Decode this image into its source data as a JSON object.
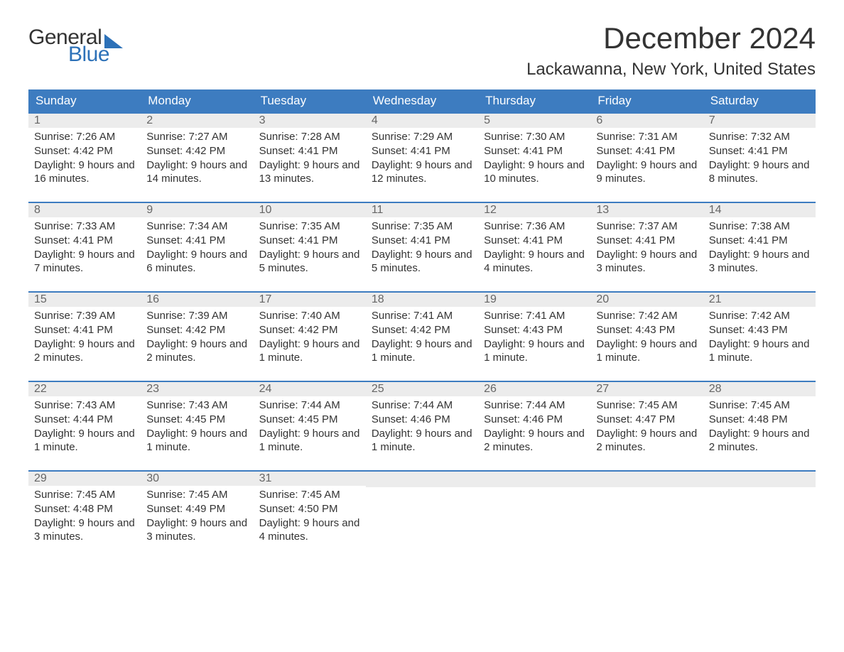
{
  "logo": {
    "text_general": "General",
    "text_blue": "Blue",
    "brand_color": "#2d71b8"
  },
  "title": "December 2024",
  "location": "Lackawanna, New York, United States",
  "colors": {
    "header_bg": "#3d7cc0",
    "header_text": "#ffffff",
    "daynum_bg": "#ececec",
    "daynum_text": "#666666",
    "body_text": "#333333",
    "page_bg": "#ffffff",
    "week_border": "#3d7cc0"
  },
  "weekdays": [
    "Sunday",
    "Monday",
    "Tuesday",
    "Wednesday",
    "Thursday",
    "Friday",
    "Saturday"
  ],
  "weeks": [
    [
      {
        "n": "1",
        "sunrise": "Sunrise: 7:26 AM",
        "sunset": "Sunset: 4:42 PM",
        "daylight": "Daylight: 9 hours and 16 minutes."
      },
      {
        "n": "2",
        "sunrise": "Sunrise: 7:27 AM",
        "sunset": "Sunset: 4:42 PM",
        "daylight": "Daylight: 9 hours and 14 minutes."
      },
      {
        "n": "3",
        "sunrise": "Sunrise: 7:28 AM",
        "sunset": "Sunset: 4:41 PM",
        "daylight": "Daylight: 9 hours and 13 minutes."
      },
      {
        "n": "4",
        "sunrise": "Sunrise: 7:29 AM",
        "sunset": "Sunset: 4:41 PM",
        "daylight": "Daylight: 9 hours and 12 minutes."
      },
      {
        "n": "5",
        "sunrise": "Sunrise: 7:30 AM",
        "sunset": "Sunset: 4:41 PM",
        "daylight": "Daylight: 9 hours and 10 minutes."
      },
      {
        "n": "6",
        "sunrise": "Sunrise: 7:31 AM",
        "sunset": "Sunset: 4:41 PM",
        "daylight": "Daylight: 9 hours and 9 minutes."
      },
      {
        "n": "7",
        "sunrise": "Sunrise: 7:32 AM",
        "sunset": "Sunset: 4:41 PM",
        "daylight": "Daylight: 9 hours and 8 minutes."
      }
    ],
    [
      {
        "n": "8",
        "sunrise": "Sunrise: 7:33 AM",
        "sunset": "Sunset: 4:41 PM",
        "daylight": "Daylight: 9 hours and 7 minutes."
      },
      {
        "n": "9",
        "sunrise": "Sunrise: 7:34 AM",
        "sunset": "Sunset: 4:41 PM",
        "daylight": "Daylight: 9 hours and 6 minutes."
      },
      {
        "n": "10",
        "sunrise": "Sunrise: 7:35 AM",
        "sunset": "Sunset: 4:41 PM",
        "daylight": "Daylight: 9 hours and 5 minutes."
      },
      {
        "n": "11",
        "sunrise": "Sunrise: 7:35 AM",
        "sunset": "Sunset: 4:41 PM",
        "daylight": "Daylight: 9 hours and 5 minutes."
      },
      {
        "n": "12",
        "sunrise": "Sunrise: 7:36 AM",
        "sunset": "Sunset: 4:41 PM",
        "daylight": "Daylight: 9 hours and 4 minutes."
      },
      {
        "n": "13",
        "sunrise": "Sunrise: 7:37 AM",
        "sunset": "Sunset: 4:41 PM",
        "daylight": "Daylight: 9 hours and 3 minutes."
      },
      {
        "n": "14",
        "sunrise": "Sunrise: 7:38 AM",
        "sunset": "Sunset: 4:41 PM",
        "daylight": "Daylight: 9 hours and 3 minutes."
      }
    ],
    [
      {
        "n": "15",
        "sunrise": "Sunrise: 7:39 AM",
        "sunset": "Sunset: 4:41 PM",
        "daylight": "Daylight: 9 hours and 2 minutes."
      },
      {
        "n": "16",
        "sunrise": "Sunrise: 7:39 AM",
        "sunset": "Sunset: 4:42 PM",
        "daylight": "Daylight: 9 hours and 2 minutes."
      },
      {
        "n": "17",
        "sunrise": "Sunrise: 7:40 AM",
        "sunset": "Sunset: 4:42 PM",
        "daylight": "Daylight: 9 hours and 1 minute."
      },
      {
        "n": "18",
        "sunrise": "Sunrise: 7:41 AM",
        "sunset": "Sunset: 4:42 PM",
        "daylight": "Daylight: 9 hours and 1 minute."
      },
      {
        "n": "19",
        "sunrise": "Sunrise: 7:41 AM",
        "sunset": "Sunset: 4:43 PM",
        "daylight": "Daylight: 9 hours and 1 minute."
      },
      {
        "n": "20",
        "sunrise": "Sunrise: 7:42 AM",
        "sunset": "Sunset: 4:43 PM",
        "daylight": "Daylight: 9 hours and 1 minute."
      },
      {
        "n": "21",
        "sunrise": "Sunrise: 7:42 AM",
        "sunset": "Sunset: 4:43 PM",
        "daylight": "Daylight: 9 hours and 1 minute."
      }
    ],
    [
      {
        "n": "22",
        "sunrise": "Sunrise: 7:43 AM",
        "sunset": "Sunset: 4:44 PM",
        "daylight": "Daylight: 9 hours and 1 minute."
      },
      {
        "n": "23",
        "sunrise": "Sunrise: 7:43 AM",
        "sunset": "Sunset: 4:45 PM",
        "daylight": "Daylight: 9 hours and 1 minute."
      },
      {
        "n": "24",
        "sunrise": "Sunrise: 7:44 AM",
        "sunset": "Sunset: 4:45 PM",
        "daylight": "Daylight: 9 hours and 1 minute."
      },
      {
        "n": "25",
        "sunrise": "Sunrise: 7:44 AM",
        "sunset": "Sunset: 4:46 PM",
        "daylight": "Daylight: 9 hours and 1 minute."
      },
      {
        "n": "26",
        "sunrise": "Sunrise: 7:44 AM",
        "sunset": "Sunset: 4:46 PM",
        "daylight": "Daylight: 9 hours and 2 minutes."
      },
      {
        "n": "27",
        "sunrise": "Sunrise: 7:45 AM",
        "sunset": "Sunset: 4:47 PM",
        "daylight": "Daylight: 9 hours and 2 minutes."
      },
      {
        "n": "28",
        "sunrise": "Sunrise: 7:45 AM",
        "sunset": "Sunset: 4:48 PM",
        "daylight": "Daylight: 9 hours and 2 minutes."
      }
    ],
    [
      {
        "n": "29",
        "sunrise": "Sunrise: 7:45 AM",
        "sunset": "Sunset: 4:48 PM",
        "daylight": "Daylight: 9 hours and 3 minutes."
      },
      {
        "n": "30",
        "sunrise": "Sunrise: 7:45 AM",
        "sunset": "Sunset: 4:49 PM",
        "daylight": "Daylight: 9 hours and 3 minutes."
      },
      {
        "n": "31",
        "sunrise": "Sunrise: 7:45 AM",
        "sunset": "Sunset: 4:50 PM",
        "daylight": "Daylight: 9 hours and 4 minutes."
      },
      null,
      null,
      null,
      null
    ]
  ]
}
